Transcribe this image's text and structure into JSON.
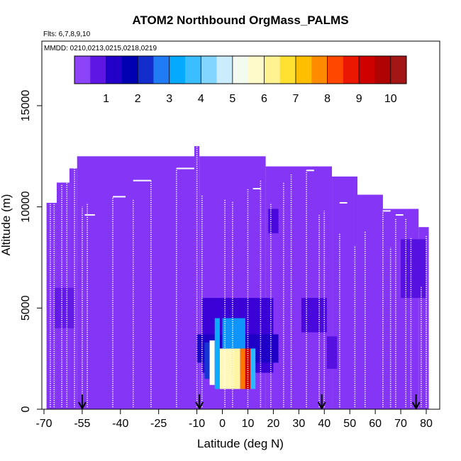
{
  "chart_data": {
    "type": "heatmap",
    "title": "ATOM2 Northbound OrgMass_PALMS",
    "flights_label": "Flts: 6,7,8,9,10",
    "mmdd_label": "MMDD: 0210,0213,0215,0218,0219",
    "xlabel": "Latitude (deg N)",
    "ylabel": "Altitude (m)",
    "xlim": [
      -70,
      85
    ],
    "ylim": [
      0,
      17500
    ],
    "x_ticks": [
      -70,
      -55,
      -40,
      -25,
      -10,
      0,
      10,
      20,
      30,
      40,
      50,
      60,
      70,
      80
    ],
    "x_tick_labels": [
      "-70",
      "-55",
      "-40",
      "-25",
      "-10",
      "0",
      "10",
      "20",
      "30",
      "40",
      "50",
      "60",
      "70",
      "80"
    ],
    "y_ticks": [
      0,
      5000,
      10000,
      15000
    ],
    "y_tick_labels": [
      "0",
      "5000",
      "10000",
      "15000"
    ],
    "colorbar": {
      "range": [
        0,
        10.5
      ],
      "ticks": [
        1,
        2,
        3,
        4,
        5,
        6,
        7,
        8,
        9,
        10
      ],
      "tick_labels": [
        "1",
        "2",
        "3",
        "4",
        "5",
        "6",
        "7",
        "8",
        "9",
        "10"
      ]
    },
    "background_value": 0.4,
    "coverage_top": [
      {
        "x0": -69,
        "x1": -65,
        "top": 10200
      },
      {
        "x0": -65,
        "x1": -60,
        "top": 11200
      },
      {
        "x0": -60,
        "x1": -57,
        "top": 11900
      },
      {
        "x0": -57,
        "x1": -11,
        "top": 12500
      },
      {
        "x0": -11,
        "x1": -9,
        "top": 13000
      },
      {
        "x0": -9,
        "x1": 17,
        "top": 12500
      },
      {
        "x0": 17,
        "x1": 43,
        "top": 12000
      },
      {
        "x0": 43,
        "x1": 53,
        "top": 11500
      },
      {
        "x0": 53,
        "x1": 63,
        "top": 10600
      },
      {
        "x0": 63,
        "x1": 77,
        "top": 9900
      },
      {
        "x0": 77,
        "x1": 81,
        "top": 9000
      }
    ],
    "cells": [
      {
        "x0": -8,
        "x1": 20,
        "y0": 1800,
        "y1": 5500,
        "value": 1.0
      },
      {
        "x0": -10,
        "x1": 22,
        "y0": 2300,
        "y1": 3700,
        "value": 1.3
      },
      {
        "x0": -7,
        "x1": -5,
        "y0": 1500,
        "y1": 3300,
        "value": 2.3
      },
      {
        "x0": -5,
        "x1": -3,
        "y0": 1200,
        "y1": 3400,
        "value": 5.4
      },
      {
        "x0": -3,
        "x1": -1,
        "y0": 1000,
        "y1": 4500,
        "value": 3.3
      },
      {
        "x0": -1,
        "x1": 4,
        "y0": 1000,
        "y1": 3000,
        "value": 5.9
      },
      {
        "x0": 4,
        "x1": 7,
        "y0": 1000,
        "y1": 3000,
        "value": 6.1
      },
      {
        "x0": 7,
        "x1": 9,
        "y0": 1000,
        "y1": 3000,
        "value": 7.9
      },
      {
        "x0": 9,
        "x1": 11,
        "y0": 1000,
        "y1": 3000,
        "value": 9.3
      },
      {
        "x0": 11,
        "x1": 13,
        "y0": 1000,
        "y1": 3000,
        "value": 3.6
      },
      {
        "x0": 0,
        "x1": 9,
        "y0": 3000,
        "y1": 4500,
        "value": 3.0
      },
      {
        "x0": 31,
        "x1": 41,
        "y0": 3800,
        "y1": 5500,
        "value": 0.9
      },
      {
        "x0": 41,
        "x1": 45,
        "y0": 2000,
        "y1": 3600,
        "value": 0.8
      },
      {
        "x0": 18,
        "x1": 22,
        "y0": 8700,
        "y1": 9900,
        "value": 0.9
      },
      {
        "x0": 70,
        "x1": 80,
        "y0": 5500,
        "y1": 8400,
        "value": 0.8
      },
      {
        "x0": -66,
        "x1": -58,
        "y0": 4000,
        "y1": 6000,
        "value": 0.7
      }
    ],
    "profiles": [
      {
        "x": -67.5,
        "bottom": 100,
        "top": 10200
      },
      {
        "x": -66,
        "bottom": 100,
        "top": 10200
      },
      {
        "x": -63,
        "bottom": 100,
        "top": 11100
      },
      {
        "x": -61,
        "bottom": 100,
        "top": 11300
      },
      {
        "x": -58,
        "bottom": 100,
        "top": 11900
      },
      {
        "x": -55,
        "bottom": 100,
        "top": 10000
      },
      {
        "x": -53,
        "bottom": 100,
        "top": 10200
      },
      {
        "x": -43,
        "bottom": 100,
        "top": 10500
      },
      {
        "x": -35,
        "bottom": 100,
        "top": 10400
      },
      {
        "x": -28,
        "bottom": 100,
        "top": 11300
      },
      {
        "x": -18,
        "bottom": 100,
        "top": 11900
      },
      {
        "x": -10,
        "bottom": 100,
        "top": 13000
      },
      {
        "x": -8,
        "bottom": 100,
        "top": 10600
      },
      {
        "x": 1,
        "bottom": 100,
        "top": 10400
      },
      {
        "x": 4,
        "bottom": 100,
        "top": 10300
      },
      {
        "x": 10,
        "bottom": 100,
        "top": 10900
      },
      {
        "x": 15,
        "bottom": 100,
        "top": 11300
      },
      {
        "x": 19,
        "bottom": 100,
        "top": 10200
      },
      {
        "x": 24,
        "bottom": 100,
        "top": 11200
      },
      {
        "x": 27,
        "bottom": 100,
        "top": 11600
      },
      {
        "x": 33,
        "bottom": 100,
        "top": 11800
      },
      {
        "x": 38,
        "bottom": 100,
        "top": 9600
      },
      {
        "x": 40,
        "bottom": 100,
        "top": 9800
      },
      {
        "x": 46,
        "bottom": 100,
        "top": 8700
      },
      {
        "x": 52,
        "bottom": 100,
        "top": 8100
      },
      {
        "x": 56,
        "bottom": 100,
        "top": 8800
      },
      {
        "x": 63,
        "bottom": 100,
        "top": 9800
      },
      {
        "x": 66,
        "bottom": 100,
        "top": 8000
      },
      {
        "x": 68,
        "bottom": 100,
        "top": 9400
      },
      {
        "x": 72,
        "bottom": 100,
        "top": 9400
      },
      {
        "x": 74,
        "bottom": 100,
        "top": 8500
      },
      {
        "x": 78,
        "bottom": 100,
        "top": 6100
      },
      {
        "x": 80,
        "bottom": 100,
        "top": 8600
      }
    ],
    "level_segments": [
      {
        "x0": -58.5,
        "x1": -57.5,
        "alt": 11950
      },
      {
        "x0": -54,
        "x1": -50,
        "alt": 9600
      },
      {
        "x0": -43,
        "x1": -38,
        "alt": 10500
      },
      {
        "x0": -35,
        "x1": -28,
        "alt": 11300
      },
      {
        "x0": -18,
        "x1": -11,
        "alt": 11900
      },
      {
        "x0": 12,
        "x1": 15,
        "alt": 10900
      },
      {
        "x0": 33,
        "x1": 36,
        "alt": 11800
      },
      {
        "x0": 46,
        "x1": 49,
        "alt": 10200
      },
      {
        "x0": 63,
        "x1": 66,
        "alt": 9800
      },
      {
        "x0": 68,
        "x1": 71,
        "alt": 9600
      }
    ],
    "arrows_x": [
      -55,
      -9,
      39,
      76
    ]
  }
}
